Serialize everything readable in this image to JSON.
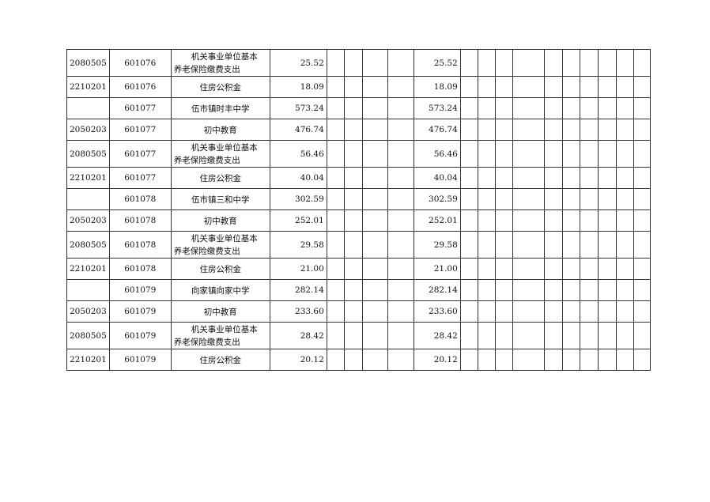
{
  "rows": [
    {
      "code": "2080505",
      "unit": "601076",
      "name": [
        "机关事业单位基本",
        "养老保险缴费支出"
      ],
      "total": "25.52",
      "basic": "25.52"
    },
    {
      "code": "2210201",
      "unit": "601076",
      "name": [
        "住房公积金"
      ],
      "total": "18.09",
      "basic": "18.09"
    },
    {
      "code": "",
      "unit": "601077",
      "name": [
        "伍市镇时丰中学"
      ],
      "total": "573.24",
      "basic": "573.24"
    },
    {
      "code": "2050203",
      "unit": "601077",
      "name": [
        "初中教育"
      ],
      "total": "476.74",
      "basic": "476.74"
    },
    {
      "code": "2080505",
      "unit": "601077",
      "name": [
        "机关事业单位基本",
        "养老保险缴费支出"
      ],
      "total": "56.46",
      "basic": "56.46"
    },
    {
      "code": "2210201",
      "unit": "601077",
      "name": [
        "住房公积金"
      ],
      "total": "40.04",
      "basic": "40.04"
    },
    {
      "code": "",
      "unit": "601078",
      "name": [
        "伍市镇三和中学"
      ],
      "total": "302.59",
      "basic": "302.59"
    },
    {
      "code": "2050203",
      "unit": "601078",
      "name": [
        "初中教育"
      ],
      "total": "252.01",
      "basic": "252.01"
    },
    {
      "code": "2080505",
      "unit": "601078",
      "name": [
        "机关事业单位基本",
        "养老保险缴费支出"
      ],
      "total": "29.58",
      "basic": "29.58"
    },
    {
      "code": "2210201",
      "unit": "601078",
      "name": [
        "住房公积金"
      ],
      "total": "21.00",
      "basic": "21.00"
    },
    {
      "code": "",
      "unit": "601079",
      "name": [
        "向家镇向家中学"
      ],
      "total": "282.14",
      "basic": "282.14"
    },
    {
      "code": "2050203",
      "unit": "601079",
      "name": [
        "初中教育"
      ],
      "total": "233.60",
      "basic": "233.60"
    },
    {
      "code": "2080505",
      "unit": "601079",
      "name": [
        "机关事业单位基本",
        "养老保险缴费支出"
      ],
      "total": "28.42",
      "basic": "28.42"
    },
    {
      "code": "2210201",
      "unit": "601079",
      "name": [
        "住房公积金"
      ],
      "total": "20.12",
      "basic": "20.12"
    }
  ]
}
